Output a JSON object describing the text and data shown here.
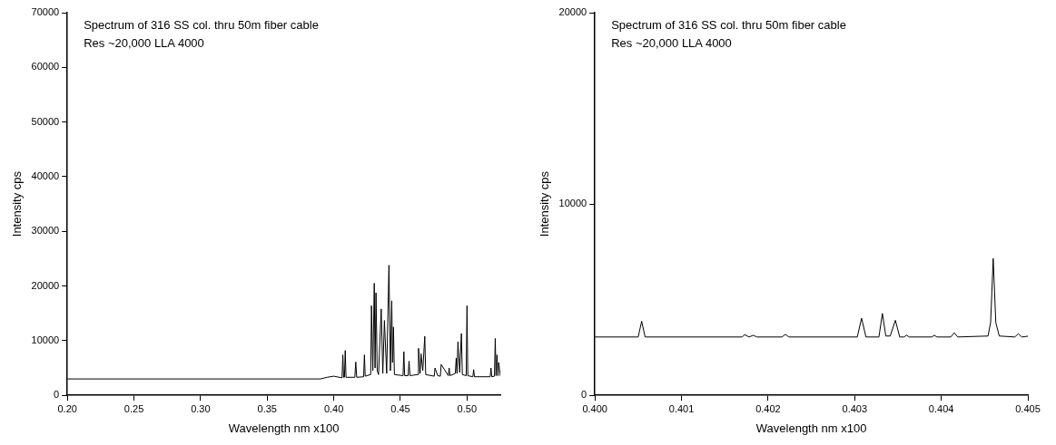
{
  "chart_data": [
    {
      "type": "line",
      "xlabel": "Wavelength nm x100",
      "ylabel": "Intensity cps",
      "annotations": [
        "Spectrum of 316 SS col. thru 50m fiber cable",
        "Res ~20,000 LLA 4000"
      ],
      "xlim": [
        0.2,
        0.525
      ],
      "ylim": [
        0,
        70000
      ],
      "xticks": [
        {
          "value": 0.2,
          "label": "0.20"
        },
        {
          "value": 0.25,
          "label": "0.25"
        },
        {
          "value": 0.3,
          "label": "0.30"
        },
        {
          "value": 0.35,
          "label": "0.35"
        },
        {
          "value": 0.4,
          "label": "0.40"
        },
        {
          "value": 0.45,
          "label": "0.45"
        },
        {
          "value": 0.5,
          "label": "0.50"
        }
      ],
      "yticks": [
        0,
        10000,
        20000,
        30000,
        40000,
        50000,
        60000,
        70000
      ],
      "grid": false,
      "legend": false,
      "marker": "none",
      "line_style": "solid",
      "series": [
        {
          "color": "#000000",
          "x": [
            0.2,
            0.39,
            0.395,
            0.4,
            0.4062,
            0.4068,
            0.4074,
            0.408,
            0.4086,
            0.4092,
            0.4158,
            0.4165,
            0.4172,
            0.4224,
            0.423,
            0.4236,
            0.4277,
            0.4283,
            0.4293,
            0.4304,
            0.431,
            0.4317,
            0.4326,
            0.4336,
            0.4356,
            0.4368,
            0.438,
            0.4397,
            0.4414,
            0.4425,
            0.4435,
            0.4441,
            0.4448,
            0.4455,
            0.452,
            0.4526,
            0.4532,
            0.4558,
            0.4565,
            0.4572,
            0.463,
            0.4636,
            0.4648,
            0.4655,
            0.4668,
            0.4683,
            0.469,
            0.4754,
            0.476,
            0.478,
            0.48,
            0.4806,
            0.486,
            0.4866,
            0.4872,
            0.4912,
            0.4919,
            0.4925,
            0.4932,
            0.4945,
            0.4958,
            0.4965,
            0.4994,
            0.5,
            0.5006,
            0.5044,
            0.505,
            0.5056,
            0.5174,
            0.518,
            0.5186,
            0.5206,
            0.5212,
            0.5218,
            0.5225,
            0.5232,
            0.5238,
            0.525
          ],
          "values": [
            3000,
            3000,
            3300,
            3500,
            3200,
            7400,
            3300,
            3300,
            8200,
            3300,
            3300,
            6100,
            3300,
            3400,
            7400,
            3500,
            3800,
            16400,
            4500,
            20500,
            5000,
            18750,
            4500,
            3800,
            15800,
            4000,
            13700,
            4000,
            23800,
            4500,
            17300,
            6000,
            12500,
            3800,
            3600,
            8000,
            3600,
            3600,
            6250,
            3600,
            3800,
            8600,
            4000,
            7600,
            4500,
            10800,
            3800,
            3500,
            5000,
            3600,
            3500,
            5650,
            3600,
            5000,
            3600,
            4000,
            6800,
            4000,
            9800,
            4200,
            11300,
            3800,
            3600,
            16400,
            3600,
            3400,
            4700,
            3400,
            3400,
            5000,
            3400,
            3500,
            10400,
            3600,
            7400,
            3600,
            6000,
            3500
          ]
        }
      ]
    },
    {
      "type": "line",
      "xlabel": "Wavelength nm x100",
      "ylabel": "Intensity cps",
      "annotations": [
        "Spectrum of 316 SS col. thru 50m fiber cable",
        "Res ~20,000 LLA 4000"
      ],
      "xlim": [
        0.4,
        0.405
      ],
      "ylim": [
        0,
        20000
      ],
      "xticks": [
        {
          "value": 0.4,
          "label": "0.400"
        },
        {
          "value": 0.401,
          "label": "0.401"
        },
        {
          "value": 0.402,
          "label": "0.402"
        },
        {
          "value": 0.403,
          "label": "0.403"
        },
        {
          "value": 0.404,
          "label": "0.404"
        },
        {
          "value": 0.405,
          "label": "0.405"
        }
      ],
      "yticks": [
        0,
        10000,
        20000
      ],
      "grid": false,
      "legend": false,
      "marker": "none",
      "line_style": "solid",
      "series": [
        {
          "color": "#000000",
          "x": [
            0.4,
            0.4005,
            0.40054,
            0.40058,
            0.4017,
            0.40173,
            0.40178,
            0.40183,
            0.40187,
            0.40216,
            0.4022,
            0.40224,
            0.40303,
            0.40308,
            0.40313,
            0.40328,
            0.40332,
            0.40336,
            0.40341,
            0.40347,
            0.40352,
            0.40357,
            0.4036,
            0.40363,
            0.40389,
            0.40392,
            0.40395,
            0.40411,
            0.40415,
            0.40419,
            0.40454,
            0.40457,
            0.4046,
            0.40463,
            0.40467,
            0.40485,
            0.40489,
            0.40493,
            0.405
          ],
          "values": [
            3050,
            3050,
            3870,
            3050,
            3050,
            3170,
            3050,
            3140,
            3050,
            3050,
            3190,
            3050,
            3050,
            4030,
            3050,
            3050,
            4280,
            3100,
            3100,
            3920,
            3050,
            3050,
            3140,
            3050,
            3050,
            3140,
            3050,
            3050,
            3270,
            3050,
            3100,
            3800,
            7150,
            3800,
            3100,
            3050,
            3220,
            3050,
            3090
          ]
        }
      ]
    }
  ]
}
